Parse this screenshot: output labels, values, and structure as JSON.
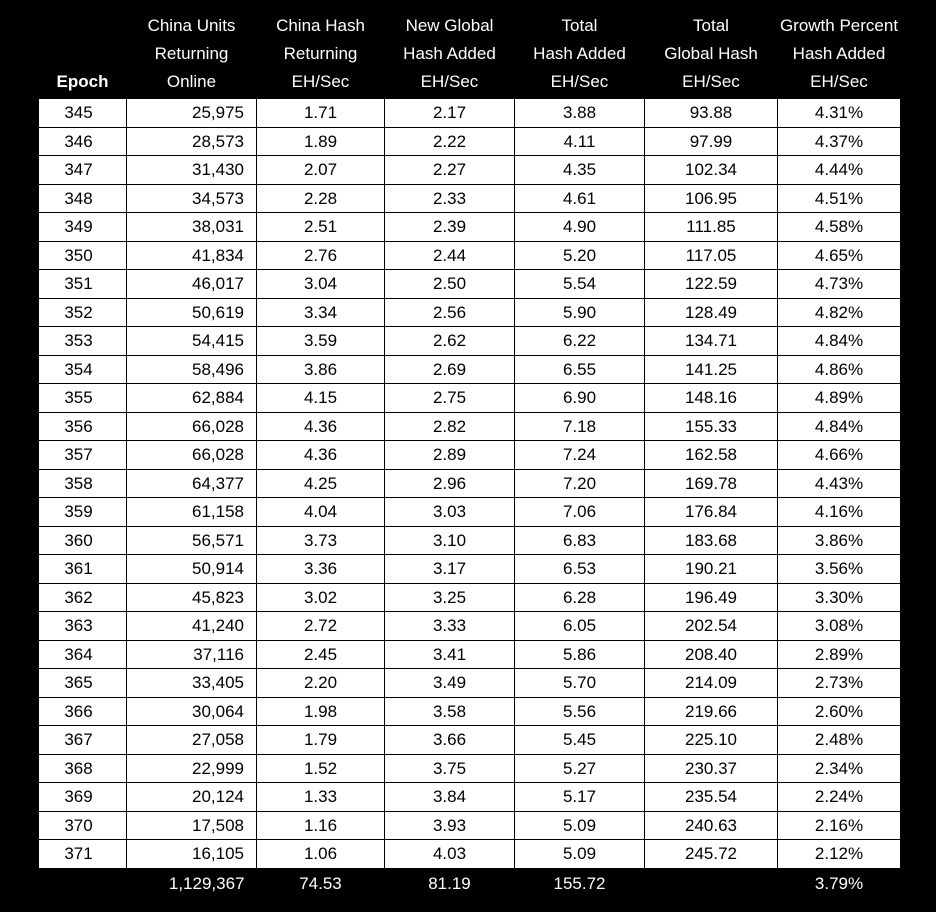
{
  "headers": [
    "Epoch",
    "China Units\nReturning\nOnline",
    "China Hash\nReturning\nEH/Sec",
    "New Global\nHash Added\nEH/Sec",
    "Total\nHash Added\nEH/Sec",
    "Total\nGlobal Hash\nEH/Sec",
    "Growth Percent\nHash Added\nEH/Sec"
  ],
  "rows": [
    [
      "345",
      "25,975",
      "1.71",
      "2.17",
      "3.88",
      "93.88",
      "4.31%"
    ],
    [
      "346",
      "28,573",
      "1.89",
      "2.22",
      "4.11",
      "97.99",
      "4.37%"
    ],
    [
      "347",
      "31,430",
      "2.07",
      "2.27",
      "4.35",
      "102.34",
      "4.44%"
    ],
    [
      "348",
      "34,573",
      "2.28",
      "2.33",
      "4.61",
      "106.95",
      "4.51%"
    ],
    [
      "349",
      "38,031",
      "2.51",
      "2.39",
      "4.90",
      "111.85",
      "4.58%"
    ],
    [
      "350",
      "41,834",
      "2.76",
      "2.44",
      "5.20",
      "117.05",
      "4.65%"
    ],
    [
      "351",
      "46,017",
      "3.04",
      "2.50",
      "5.54",
      "122.59",
      "4.73%"
    ],
    [
      "352",
      "50,619",
      "3.34",
      "2.56",
      "5.90",
      "128.49",
      "4.82%"
    ],
    [
      "353",
      "54,415",
      "3.59",
      "2.62",
      "6.22",
      "134.71",
      "4.84%"
    ],
    [
      "354",
      "58,496",
      "3.86",
      "2.69",
      "6.55",
      "141.25",
      "4.86%"
    ],
    [
      "355",
      "62,884",
      "4.15",
      "2.75",
      "6.90",
      "148.16",
      "4.89%"
    ],
    [
      "356",
      "66,028",
      "4.36",
      "2.82",
      "7.18",
      "155.33",
      "4.84%"
    ],
    [
      "357",
      "66,028",
      "4.36",
      "2.89",
      "7.24",
      "162.58",
      "4.66%"
    ],
    [
      "358",
      "64,377",
      "4.25",
      "2.96",
      "7.20",
      "169.78",
      "4.43%"
    ],
    [
      "359",
      "61,158",
      "4.04",
      "3.03",
      "7.06",
      "176.84",
      "4.16%"
    ],
    [
      "360",
      "56,571",
      "3.73",
      "3.10",
      "6.83",
      "183.68",
      "3.86%"
    ],
    [
      "361",
      "50,914",
      "3.36",
      "3.17",
      "6.53",
      "190.21",
      "3.56%"
    ],
    [
      "362",
      "45,823",
      "3.02",
      "3.25",
      "6.28",
      "196.49",
      "3.30%"
    ],
    [
      "363",
      "41,240",
      "2.72",
      "3.33",
      "6.05",
      "202.54",
      "3.08%"
    ],
    [
      "364",
      "37,116",
      "2.45",
      "3.41",
      "5.86",
      "208.40",
      "2.89%"
    ],
    [
      "365",
      "33,405",
      "2.20",
      "3.49",
      "5.70",
      "214.09",
      "2.73%"
    ],
    [
      "366",
      "30,064",
      "1.98",
      "3.58",
      "5.56",
      "219.66",
      "2.60%"
    ],
    [
      "367",
      "27,058",
      "1.79",
      "3.66",
      "5.45",
      "225.10",
      "2.48%"
    ],
    [
      "368",
      "22,999",
      "1.52",
      "3.75",
      "5.27",
      "230.37",
      "2.34%"
    ],
    [
      "369",
      "20,124",
      "1.33",
      "3.84",
      "5.17",
      "235.54",
      "2.24%"
    ],
    [
      "370",
      "17,508",
      "1.16",
      "3.93",
      "5.09",
      "240.63",
      "2.16%"
    ],
    [
      "371",
      "16,105",
      "1.06",
      "4.03",
      "5.09",
      "245.72",
      "2.12%"
    ]
  ],
  "totals": [
    "",
    "1,129,367",
    "74.53",
    "81.19",
    "155.72",
    "",
    "3.79%"
  ]
}
